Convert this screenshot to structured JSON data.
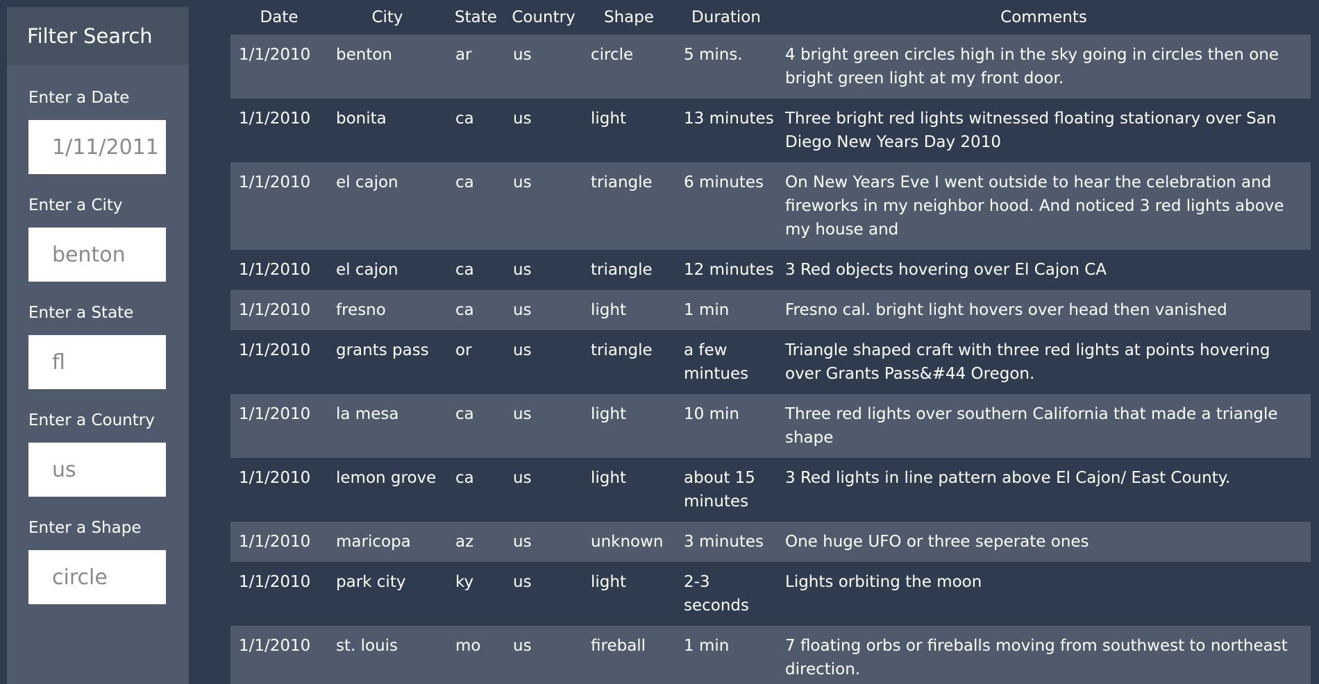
{
  "sidebar": {
    "title": "Filter Search",
    "filters": [
      {
        "label": "Enter a Date",
        "value": "1/11/2011"
      },
      {
        "label": "Enter a City",
        "value": "benton"
      },
      {
        "label": "Enter a State",
        "value": "fl"
      },
      {
        "label": "Enter a Country",
        "value": "us"
      },
      {
        "label": "Enter a Shape",
        "value": "circle"
      }
    ]
  },
  "table": {
    "headers": [
      "Date",
      "City",
      "State",
      "Country",
      "Shape",
      "Duration",
      "Comments"
    ],
    "rows": [
      [
        "1/1/2010",
        "benton",
        "ar",
        "us",
        "circle",
        "5 mins.",
        "4 bright green circles high in the sky going in circles then one bright green light at my front door."
      ],
      [
        "1/1/2010",
        "bonita",
        "ca",
        "us",
        "light",
        "13 minutes",
        "Three bright red lights witnessed floating stationary over San Diego New Years Day 2010"
      ],
      [
        "1/1/2010",
        "el cajon",
        "ca",
        "us",
        "triangle",
        "6 minutes",
        "On New Years Eve I went outside to hear the celebration and fireworks in my neighbor hood. And noticed 3 red lights above my house and"
      ],
      [
        "1/1/2010",
        "el cajon",
        "ca",
        "us",
        "triangle",
        "12 minutes",
        "3 Red objects hovering over El Cajon CA"
      ],
      [
        "1/1/2010",
        "fresno",
        "ca",
        "us",
        "light",
        "1 min",
        "Fresno cal. bright light hovers over head then vanished"
      ],
      [
        "1/1/2010",
        "grants pass",
        "or",
        "us",
        "triangle",
        "a few mintues",
        "Triangle shaped craft with three red lights at points hovering over Grants Pass&#44 Oregon."
      ],
      [
        "1/1/2010",
        "la mesa",
        "ca",
        "us",
        "light",
        "10 min",
        "Three red lights over southern California that made a triangle shape"
      ],
      [
        "1/1/2010",
        "lemon grove",
        "ca",
        "us",
        "light",
        "about 15 minutes",
        "3 Red lights in line pattern above El Cajon/ East County."
      ],
      [
        "1/1/2010",
        "maricopa",
        "az",
        "us",
        "unknown",
        "3 minutes",
        "One huge UFO or three seperate ones"
      ],
      [
        "1/1/2010",
        "park city",
        "ky",
        "us",
        "light",
        "2-3 seconds",
        "Lights orbiting the moon"
      ],
      [
        "1/1/2010",
        "st. louis",
        "mo",
        "us",
        "fireball",
        "1 min",
        "7 floating orbs or fireballs moving from southwest to northeast direction."
      ]
    ]
  }
}
